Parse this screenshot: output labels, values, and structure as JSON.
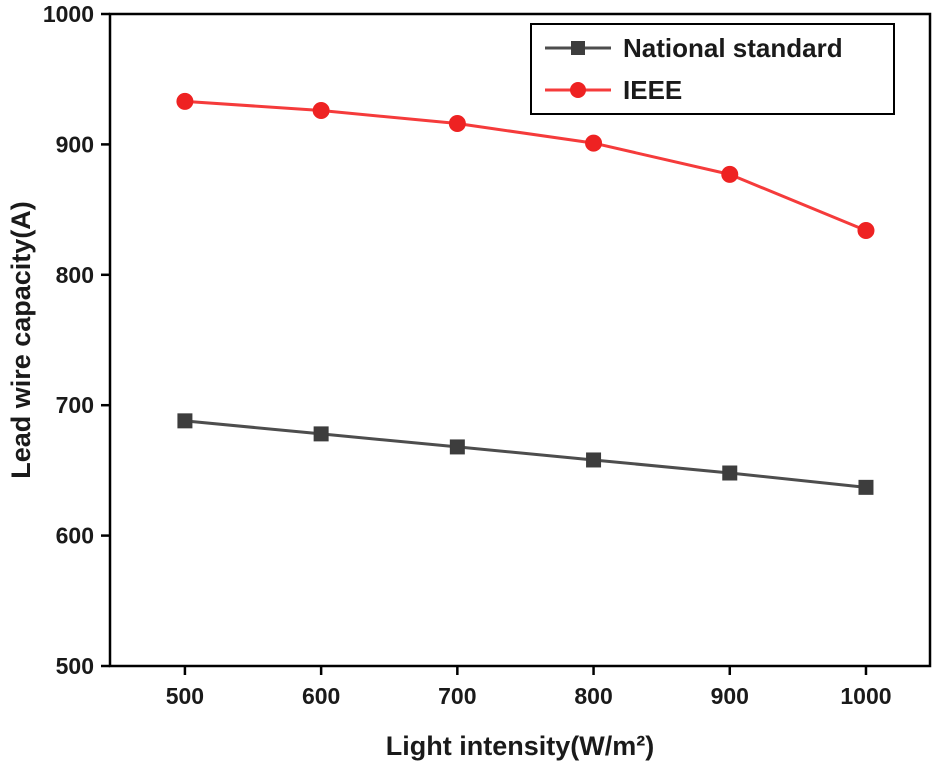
{
  "chart_data": {
    "type": "line",
    "x": [
      500,
      600,
      700,
      800,
      900,
      1000
    ],
    "series": [
      {
        "name": "National standard",
        "values": [
          688,
          678,
          668,
          658,
          648,
          637
        ],
        "line_color": "#4d4d4d",
        "marker_color": "#3d3d3d",
        "marker": "square"
      },
      {
        "name": "IEEE",
        "values": [
          933,
          926,
          916,
          901,
          877,
          834
        ],
        "line_color": "#f53b3b",
        "marker_color": "#ee2222",
        "marker": "circle"
      }
    ],
    "title": "",
    "xlabel": "Light intensity(W/m²)",
    "ylabel": "Lead wire capacity(A)",
    "xlim": [
      445,
      1047
    ],
    "ylim": [
      500,
      1000
    ],
    "xticks": [
      500,
      600,
      700,
      800,
      900,
      1000
    ],
    "yticks": [
      500,
      600,
      700,
      800,
      900,
      1000
    ],
    "grid": false,
    "legend_position": "top-right",
    "axis_color": "#000000"
  }
}
